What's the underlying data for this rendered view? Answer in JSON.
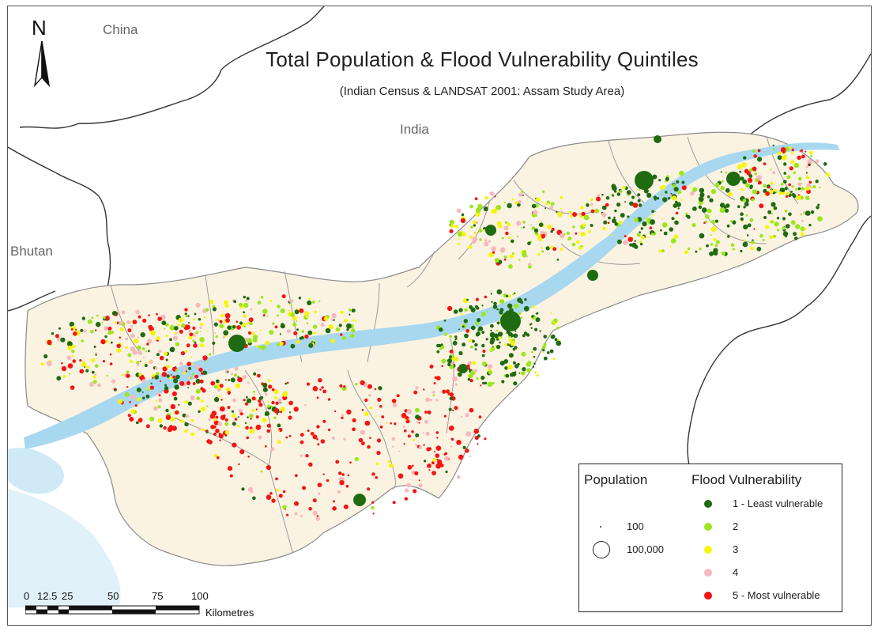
{
  "map": {
    "title": "Total Population & Flood Vulnerability Quintiles",
    "subtitle": "(Indian Census & LANDSAT 2001: Assam Study Area)",
    "north_label": "N",
    "place_labels": {
      "china": "China",
      "india": "India",
      "bhutan": "Bhutan"
    }
  },
  "legend": {
    "population_heading": "Population",
    "population_items": [
      {
        "label": "100"
      },
      {
        "label": "100,000"
      }
    ],
    "flood_heading": "Flood Vulnerability",
    "flood_items": [
      {
        "label": "1 - Least vulnerable",
        "color": "#1f6b12"
      },
      {
        "label": "2",
        "color": "#9be61e"
      },
      {
        "label": "3",
        "color": "#f5f50a"
      },
      {
        "label": "4",
        "color": "#f7b8bf"
      },
      {
        "label": "5 - Most vulnerable",
        "color": "#f51414"
      }
    ]
  },
  "scalebar": {
    "ticks": [
      "0",
      "12.5",
      "25",
      "50",
      "75",
      "100"
    ],
    "unit": "Kilometres"
  },
  "colors": {
    "land": "#fbf3e2",
    "river": "#a8d8ef",
    "boundary": "#8a8a8a",
    "border": "#333333"
  }
}
